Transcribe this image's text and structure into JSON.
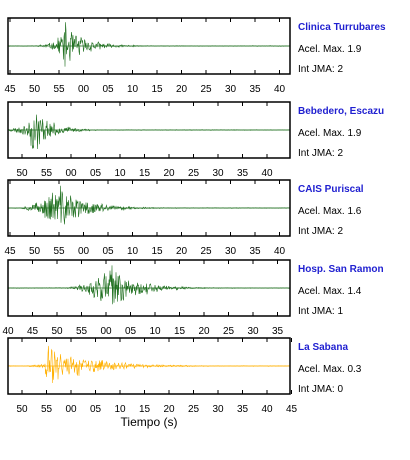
{
  "chart_data": [
    {
      "type": "line",
      "title": "Clinica Turrubares",
      "accel_label": "Acel. Max.",
      "accel": "1.9",
      "jma_label": "Int JMA:",
      "jma": "2",
      "color": "#1f6f1f",
      "ticks": [
        "45",
        "50",
        "55",
        "00",
        "05",
        "10",
        "15",
        "20",
        "25",
        "30",
        "35",
        "40"
      ],
      "onset": 17.0,
      "amp": 1.0,
      "rise": 3.0,
      "decay": 7.0,
      "pre": 0.18,
      "seed": 11
    },
    {
      "type": "line",
      "title": "Bebedero, Escazu",
      "accel_label": "Acel. Max.",
      "accel": "1.9",
      "jma_label": "Int JMA:",
      "jma": "2",
      "color": "#1f6f1f",
      "ticks": [
        "50",
        "55",
        "00",
        "05",
        "10",
        "15",
        "20",
        "25",
        "30",
        "35",
        "40"
      ],
      "onset": 7.0,
      "amp": 1.0,
      "rise": 2.0,
      "decay": 6.0,
      "pre": 0.25,
      "seed": 23
    },
    {
      "type": "line",
      "title": "CAIS Puriscal",
      "accel_label": "Acel. Max.",
      "accel": "1.6",
      "jma_label": "Int JMA:",
      "jma": "2",
      "color": "#1f6f1f",
      "ticks": [
        "45",
        "50",
        "55",
        "00",
        "05",
        "10",
        "15",
        "20",
        "25",
        "30",
        "35",
        "40"
      ],
      "onset": 12.0,
      "amp": 1.0,
      "rise": 6.0,
      "decay": 9.0,
      "pre": 0.3,
      "seed": 37
    },
    {
      "type": "line",
      "title": "Hosp. San Ramon",
      "accel_label": "Acel. Max.",
      "accel": "1.4",
      "jma_label": "Int JMA:",
      "jma": "1",
      "color": "#1f6f1f",
      "ticks": [
        "40",
        "45",
        "50",
        "55",
        "00",
        "05",
        "10",
        "15",
        "20",
        "25",
        "30",
        "35"
      ],
      "onset": 28.0,
      "amp": 1.0,
      "rise": 9.0,
      "decay": 9.0,
      "pre": 0.2,
      "seed": 53
    },
    {
      "type": "line",
      "title": "La Sabana",
      "accel_label": "Acel. Max.",
      "accel": "0.3",
      "jma_label": "Int JMA:",
      "jma": "0",
      "color": "#ffb000",
      "ticks": [
        "50",
        "55",
        "00",
        "05",
        "10",
        "15",
        "20",
        "25",
        "30",
        "35",
        "40",
        "45"
      ],
      "onset": 13.0,
      "amp": 1.0,
      "rise": 0.6,
      "decay": 14.0,
      "pre": 0.1,
      "seed": 71
    }
  ],
  "xlabel": "Tiempo (s)"
}
